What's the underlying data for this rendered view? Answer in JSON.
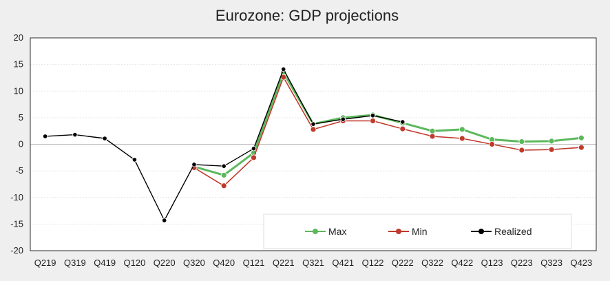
{
  "chart_data": {
    "type": "line",
    "title": "Eurozone: GDP projections",
    "xlabel": "",
    "ylabel": "",
    "ylim": [
      -20,
      20
    ],
    "yticks": [
      20,
      15,
      10,
      5,
      0,
      -5,
      -10,
      -15,
      -20
    ],
    "grid": true,
    "legend_position": "bottom-right",
    "categories": [
      "Q219",
      "Q319",
      "Q419",
      "Q120",
      "Q220",
      "Q320",
      "Q420",
      "Q121",
      "Q221",
      "Q321",
      "Q421",
      "Q122",
      "Q222",
      "Q322",
      "Q422",
      "Q123",
      "Q223",
      "Q323",
      "Q423"
    ],
    "series": [
      {
        "name": "Max",
        "color": "#5cb85c",
        "values": [
          null,
          null,
          null,
          null,
          null,
          -4.2,
          -5.8,
          -1.6,
          13.5,
          3.8,
          5.0,
          5.5,
          4.0,
          2.5,
          2.8,
          0.9,
          0.5,
          0.6,
          1.2
        ]
      },
      {
        "name": "Min",
        "color": "#c0392b",
        "values": [
          null,
          null,
          null,
          null,
          null,
          -4.4,
          -7.8,
          -2.5,
          12.6,
          2.8,
          4.4,
          4.4,
          2.9,
          1.5,
          1.1,
          0.0,
          -1.1,
          -1.0,
          -0.6
        ]
      },
      {
        "name": "Realized",
        "color": "#000000",
        "values": [
          1.5,
          1.8,
          1.1,
          -2.9,
          -14.3,
          -3.8,
          -4.1,
          -0.8,
          14.1,
          3.8,
          4.7,
          5.4,
          4.2,
          null,
          null,
          null,
          null,
          null,
          null
        ]
      }
    ]
  }
}
